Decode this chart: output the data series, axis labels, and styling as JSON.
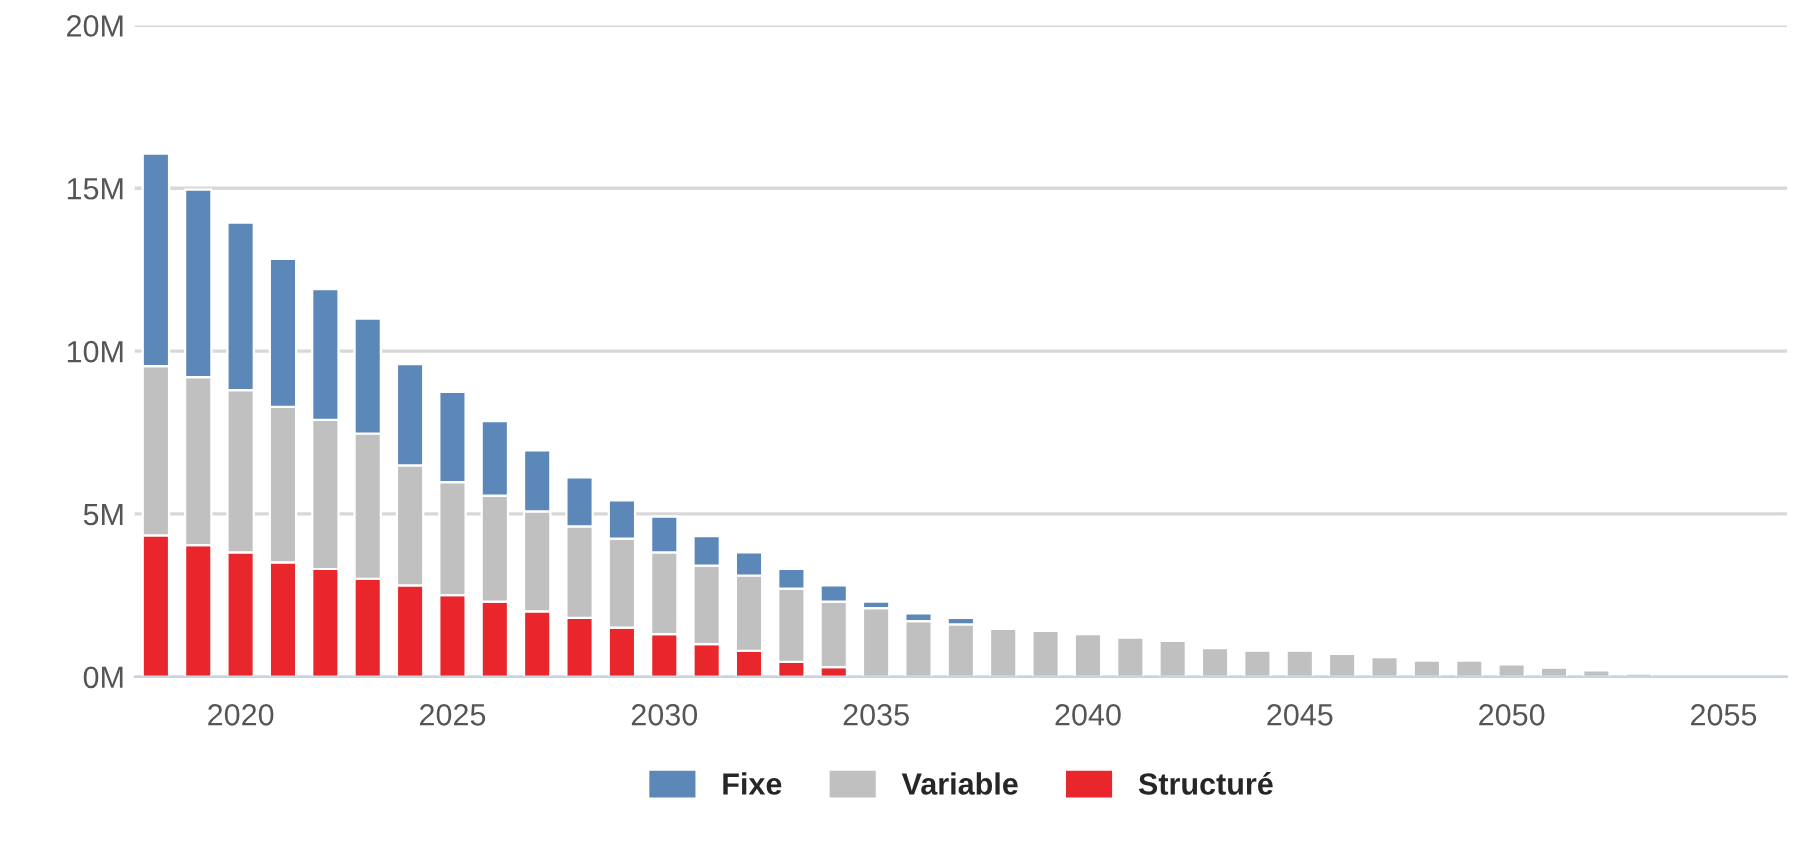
{
  "chart_data": {
    "type": "bar",
    "stacked": true,
    "x": [
      2018,
      2019,
      2020,
      2021,
      2022,
      2023,
      2024,
      2025,
      2026,
      2027,
      2028,
      2029,
      2030,
      2031,
      2032,
      2033,
      2034,
      2035,
      2036,
      2037,
      2038,
      2039,
      2040,
      2041,
      2042,
      2043,
      2044,
      2045,
      2046,
      2047,
      2048,
      2049,
      2050,
      2051,
      2052,
      2053,
      2054,
      2055,
      2056
    ],
    "series": [
      {
        "name": "Structuré",
        "color": "#e8262b",
        "values": [
          4.34,
          4.04,
          3.82,
          3.51,
          3.31,
          3.01,
          2.81,
          2.51,
          2.31,
          2.01,
          1.81,
          1.51,
          1.31,
          1.0,
          0.8,
          0.46,
          0.3,
          0,
          0,
          0,
          0,
          0,
          0,
          0,
          0,
          0,
          0,
          0,
          0,
          0,
          0,
          0,
          0,
          0,
          0,
          0,
          0,
          0,
          0
        ]
      },
      {
        "name": "Variable",
        "color": "#c0c0c0",
        "values": [
          5.2,
          5.16,
          4.98,
          4.78,
          4.58,
          4.46,
          3.68,
          3.47,
          3.25,
          3.07,
          2.81,
          2.73,
          2.51,
          2.41,
          2.31,
          2.25,
          2.01,
          2.11,
          1.71,
          1.61,
          1.47,
          1.41,
          1.31,
          1.2,
          1.1,
          0.88,
          0.8,
          0.8,
          0.7,
          0.6,
          0.5,
          0.5,
          0.38,
          0.28,
          0.2,
          0.1,
          null,
          null,
          null
        ]
      },
      {
        "name": "Fixe",
        "color": "#5b87b9",
        "values": [
          6.52,
          5.76,
          5.14,
          4.54,
          4.01,
          3.53,
          3.11,
          2.77,
          2.29,
          1.87,
          1.5,
          1.18,
          1.1,
          0.91,
          0.71,
          0.6,
          0.5,
          0.2,
          0.24,
          0.2,
          0,
          0,
          0,
          0,
          0,
          0,
          0,
          0,
          0,
          0,
          0,
          0,
          0,
          0,
          0,
          0,
          0,
          0,
          0
        ]
      }
    ],
    "xlim": [
      2017.5,
      2056.5
    ],
    "xticks": [
      2020,
      2025,
      2030,
      2035,
      2040,
      2045,
      2050,
      2055
    ],
    "ylim": [
      0,
      20
    ],
    "yticks": [
      {
        "value": 0,
        "label": "0M"
      },
      {
        "value": 5,
        "label": "5M"
      },
      {
        "value": 10,
        "label": "10M"
      },
      {
        "value": 15,
        "label": "15M"
      },
      {
        "value": 20,
        "label": "20M"
      }
    ],
    "grid": "y",
    "legend": "bottom"
  }
}
